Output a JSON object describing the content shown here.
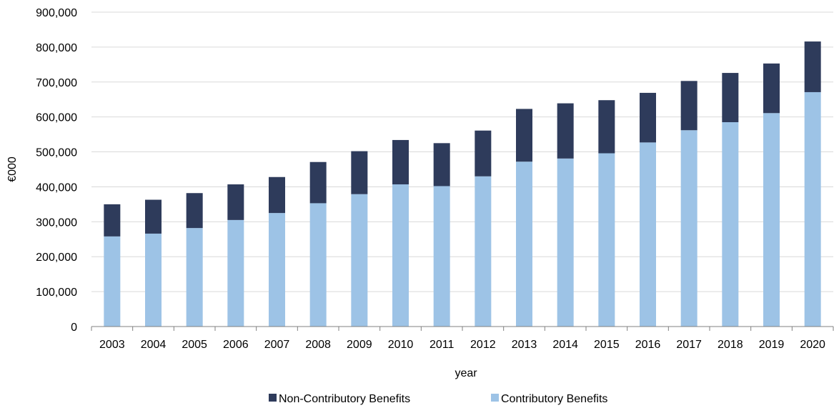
{
  "chart_data": {
    "type": "bar",
    "stacked": true,
    "title": "",
    "xlabel": "year",
    "ylabel": "€000",
    "ylim": [
      0,
      900000
    ],
    "yticks": [
      "0",
      "100,000",
      "200,000",
      "300,000",
      "400,000",
      "500,000",
      "600,000",
      "700,000",
      "800,000",
      "900,000"
    ],
    "grid": true,
    "legend_position": "bottom",
    "categories": [
      "2003",
      "2004",
      "2005",
      "2006",
      "2007",
      "2008",
      "2009",
      "2010",
      "2011",
      "2012",
      "2013",
      "2014",
      "2015",
      "2016",
      "2017",
      "2018",
      "2019",
      "2020"
    ],
    "series": [
      {
        "name": "Contributory Benefits",
        "color": "#9dc3e6",
        "values": [
          258000,
          266000,
          282000,
          305000,
          325000,
          353000,
          379000,
          407000,
          402000,
          430000,
          472000,
          481000,
          496000,
          527000,
          562000,
          585000,
          611000,
          671000
        ]
      },
      {
        "name": "Non-Contributory Benefits",
        "color": "#2e3b5b",
        "values": [
          92000,
          97000,
          100000,
          102000,
          103000,
          118000,
          123000,
          127000,
          123000,
          131000,
          151000,
          158000,
          152000,
          142000,
          141000,
          141000,
          142000,
          145000
        ]
      }
    ],
    "legend": [
      {
        "label": "Non-Contributory Benefits",
        "color": "#2e3b5b"
      },
      {
        "label": "Contributory Benefits",
        "color": "#9dc3e6"
      }
    ]
  }
}
